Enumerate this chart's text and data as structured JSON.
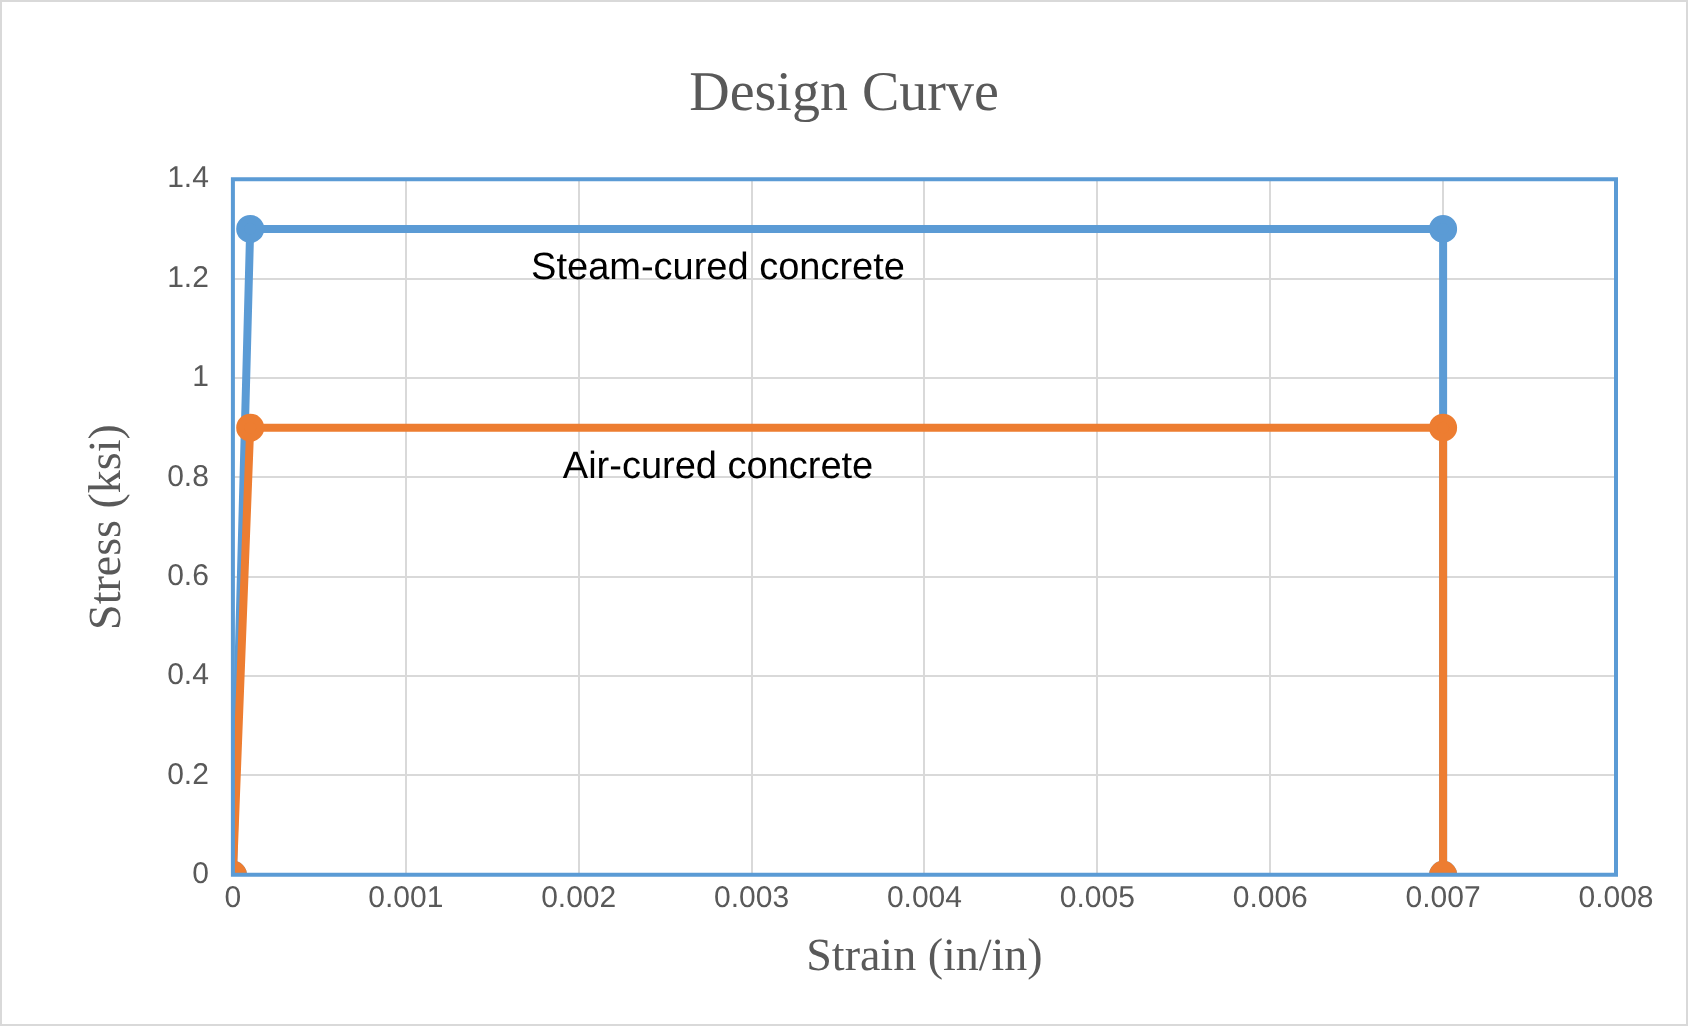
{
  "chart_data": {
    "type": "line",
    "title": "Design Curve",
    "xlabel": "Strain (in/in)",
    "ylabel": "Stress (ksi)",
    "xlim": [
      0,
      0.008
    ],
    "xticks": [
      0,
      0.001,
      0.002,
      0.003,
      0.004,
      0.005,
      0.006,
      0.007,
      0.008
    ],
    "ylim": [
      0,
      1.4
    ],
    "yticks": [
      0,
      0.2,
      0.4,
      0.6,
      0.8,
      1,
      1.2,
      1.4
    ],
    "grid": true,
    "legend": false,
    "marker": "circle",
    "line_style": "solid",
    "series": [
      {
        "name": "Steam-cured concrete",
        "color": "#5b9bd5",
        "x": [
          0,
          0.0001,
          0.007,
          0.007
        ],
        "values": [
          0,
          1.3,
          1.3,
          0
        ]
      },
      {
        "name": "Air-cured concrete",
        "color": "#ed7d31",
        "x": [
          0,
          0.0001,
          0.007,
          0.007
        ],
        "values": [
          0,
          0.9,
          0.9,
          0
        ]
      }
    ]
  }
}
